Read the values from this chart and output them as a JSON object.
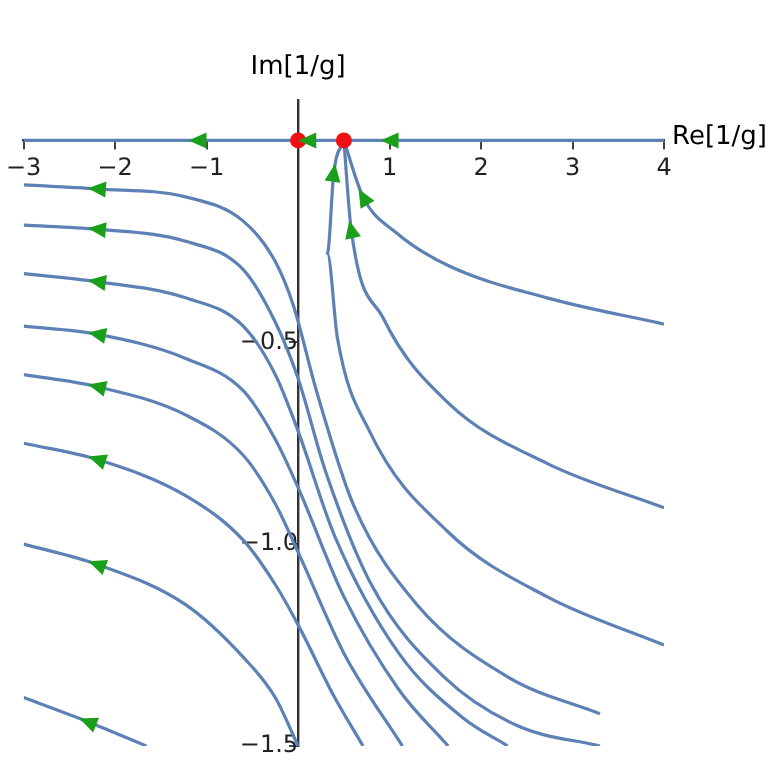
{
  "chart_data": {
    "type": "line",
    "xlabel": "Re[1/g]",
    "ylabel": "Im[1/g]",
    "xlim": [
      -3,
      4
    ],
    "ylim": [
      -1.5,
      0.1
    ],
    "xticks": [
      {
        "value": -3,
        "label": "−3"
      },
      {
        "value": -2,
        "label": "−2"
      },
      {
        "value": -1,
        "label": "−1"
      },
      {
        "value": 0,
        "label": null
      },
      1,
      2,
      3,
      4
    ],
    "yticks": [
      {
        "value": -1.5,
        "label": "−1.5"
      },
      {
        "value": -1,
        "label": "−1.0"
      },
      {
        "value": -0.5,
        "label": "−0.5"
      },
      {
        "value": 0,
        "label": null
      }
    ],
    "grid": false,
    "legend": false,
    "marker": "none",
    "line_style": "solid",
    "series": [
      {
        "color": "#5e81b5",
        "x": [
          -3,
          -1.1,
          0
        ],
        "values": [
          0,
          0,
          0
        ]
      },
      {
        "color": "#5e81b5",
        "x": [
          0,
          0.1,
          0.5
        ],
        "values": [
          0,
          0,
          0
        ]
      },
      {
        "color": "#5e81b5",
        "x": [
          0.5,
          1,
          4
        ],
        "values": [
          0,
          0,
          0
        ]
      },
      {
        "color": "#5e81b5",
        "x": [
          0.5,
          0.71,
          1.08,
          1.64,
          2.72,
          4
        ],
        "values": [
          0,
          -0.14,
          -0.23,
          -0.31,
          -0.39,
          -0.455
        ]
      },
      {
        "color": "#5e81b5",
        "x": [
          0.5,
          0.58,
          0.93,
          1.64,
          2.72,
          4
        ],
        "values": [
          0,
          -0.22,
          -0.44,
          -0.65,
          -0.8,
          -0.91
        ]
      },
      {
        "color": "#5e81b5",
        "x": [
          0.5,
          0.39,
          0.32,
          0.43,
          0.78,
          1.64,
          2.72,
          4
        ],
        "values": [
          0,
          -0.08,
          -0.28,
          -0.49,
          -0.72,
          -0.97,
          -1.13,
          -1.25
        ]
      },
      {
        "color": "#5e81b5",
        "x": [
          -3,
          -2.2,
          -1.23,
          -0.6,
          -0.25,
          -0.05,
          0.2,
          0.6,
          1.3,
          2.3,
          3.3
        ],
        "values": [
          -0.11,
          -0.12,
          -0.14,
          -0.2,
          -0.3,
          -0.41,
          -0.62,
          -0.9,
          -1.15,
          -1.33,
          -1.42
        ]
      },
      {
        "color": "#5e81b5",
        "x": [
          -3,
          -2.2,
          -1.23,
          -0.6,
          -0.25,
          0,
          0.3,
          0.8,
          1.6,
          2.4,
          3.3
        ],
        "values": [
          -0.21,
          -0.22,
          -0.25,
          -0.32,
          -0.45,
          -0.59,
          -0.82,
          -1.1,
          -1.33,
          -1.45,
          -1.5
        ]
      },
      {
        "color": "#5e81b5",
        "x": [
          -3,
          -2.2,
          -1.23,
          -0.6,
          -0.25,
          0,
          0.4,
          1.1,
          1.8,
          2.29
        ],
        "values": [
          -0.33,
          -0.35,
          -0.39,
          -0.46,
          -0.58,
          -0.72,
          -0.98,
          -1.27,
          -1.43,
          -1.5
        ]
      },
      {
        "color": "#5e81b5",
        "x": [
          -3,
          -2.2,
          -1.23,
          -0.6,
          -0.25,
          0,
          0.5,
          1.1,
          1.64
        ],
        "values": [
          -0.46,
          -0.48,
          -0.54,
          -0.62,
          -0.74,
          -0.86,
          -1.13,
          -1.36,
          -1.5
        ]
      },
      {
        "color": "#5e81b5",
        "x": [
          -3,
          -2.2,
          -1.23,
          -0.6,
          -0.25,
          0,
          0.5,
          1.14
        ],
        "values": [
          -0.58,
          -0.61,
          -0.68,
          -0.78,
          -0.9,
          -1.02,
          -1.27,
          -1.5
        ]
      },
      {
        "color": "#5e81b5",
        "x": [
          -3,
          -2.2,
          -1.23,
          -0.6,
          -0.25,
          0,
          0.4,
          0.71
        ],
        "values": [
          -0.75,
          -0.79,
          -0.88,
          -0.99,
          -1.1,
          -1.2,
          -1.38,
          -1.5
        ]
      },
      {
        "color": "#5e81b5",
        "x": [
          -3,
          -2.2,
          -1.23,
          -0.6,
          -0.25,
          0
        ],
        "values": [
          -1,
          -1.05,
          -1.15,
          -1.28,
          -1.38,
          -1.5
        ]
      },
      {
        "color": "#5e81b5",
        "x": [
          -3,
          -2.3,
          -1.66
        ],
        "values": [
          -1.38,
          -1.44,
          -1.5
        ]
      },
      {
        "type": "scatter",
        "marker": "circle",
        "color": "#ee1111",
        "x": [
          0,
          0.5
        ],
        "values": [
          0,
          0
        ]
      }
    ]
  }
}
